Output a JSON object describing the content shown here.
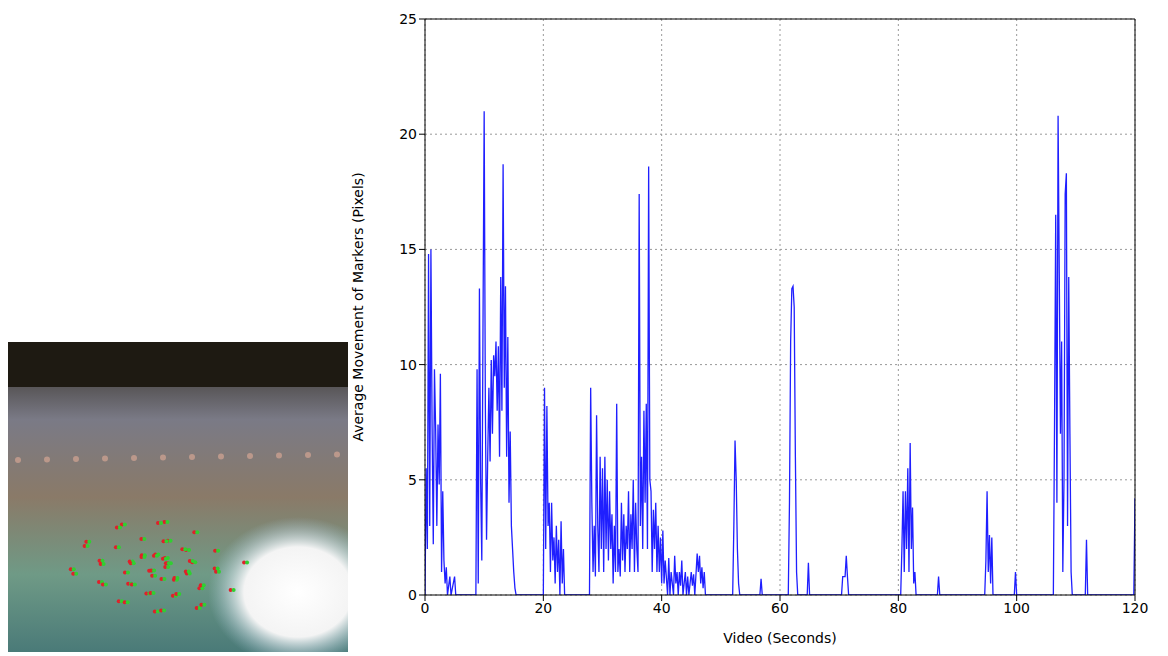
{
  "chart_data": {
    "type": "line",
    "xlabel": "Video (Seconds)",
    "ylabel": "Average Movement of Markers (Pixels)",
    "xlim": [
      0,
      120
    ],
    "xticks": [
      0,
      20,
      40,
      60,
      80,
      100,
      120
    ],
    "ylim": [
      0,
      25
    ],
    "yticks": [
      0,
      5,
      10,
      15,
      20,
      25
    ],
    "grid": true,
    "color": "#1f1fff",
    "x": [
      0,
      0.2,
      0.4,
      0.6,
      0.8,
      1.0,
      1.2,
      1.4,
      1.6,
      1.8,
      2.0,
      2.2,
      2.4,
      2.6,
      2.8,
      3.0,
      3.2,
      3.4,
      3.6,
      3.8,
      4.2,
      4.4,
      5,
      5.2,
      8.6,
      8.8,
      9.0,
      9.2,
      9.4,
      9.6,
      9.8,
      10.0,
      10.2,
      10.4,
      10.6,
      10.8,
      11.0,
      11.2,
      11.4,
      11.6,
      11.8,
      12,
      12.2,
      12.4,
      12.6,
      12.8,
      13,
      13.2,
      13.4,
      13.6,
      13.8,
      14,
      14.2,
      14.4,
      14.6,
      14.8,
      15,
      15.2,
      15.4,
      20,
      20.2,
      20.4,
      20.6,
      20.8,
      21,
      21.2,
      21.4,
      21.6,
      21.8,
      22,
      22.2,
      22.4,
      22.6,
      22.8,
      23,
      23.2,
      23.4,
      23.6,
      27.8,
      28,
      28.2,
      28.4,
      28.6,
      28.8,
      29,
      29.2,
      29.4,
      29.6,
      29.8,
      30,
      30.2,
      30.4,
      30.6,
      30.8,
      31,
      31.2,
      31.4,
      31.6,
      31.8,
      32,
      32.2,
      32.4,
      32.6,
      32.8,
      33,
      33.2,
      33.4,
      33.6,
      33.8,
      34,
      34.2,
      34.4,
      34.6,
      34.8,
      35,
      35.2,
      35.4,
      35.6,
      35.8,
      36,
      36.2,
      36.4,
      36.6,
      36.8,
      37,
      37.2,
      37.4,
      37.6,
      37.8,
      38,
      38.2,
      38.4,
      38.6,
      38.8,
      39,
      39.2,
      39.4,
      39.6,
      39.8,
      40,
      40.2,
      40.4,
      40.6,
      41,
      41.2,
      41.4,
      41.6,
      42,
      42.2,
      42.4,
      42.6,
      42.8,
      43,
      43.2,
      43.4,
      43.6,
      44,
      44.2,
      44.4,
      44.6,
      45,
      45.2,
      45.4,
      45.6,
      46,
      46.2,
      46.4,
      46.6,
      46.8,
      47,
      47.2,
      47.4,
      52,
      52.2,
      52.4,
      52.6,
      52.8,
      53,
      53.2,
      56.6,
      56.8,
      57,
      61.4,
      61.6,
      61.8,
      62,
      62.2,
      62.4,
      62.6,
      62.8,
      63,
      64.6,
      64.8,
      65,
      70.4,
      70.6,
      71,
      71.2,
      71.4,
      71.6,
      80.4,
      80.6,
      80.8,
      81,
      81.2,
      81.4,
      81.6,
      81.8,
      82,
      82.2,
      82.4,
      82.6,
      82.8,
      83,
      86.6,
      86.8,
      87,
      94.6,
      94.8,
      95,
      95.2,
      95.4,
      95.6,
      95.8,
      96,
      99.6,
      99.8,
      100,
      106.2,
      106.4,
      106.6,
      106.8,
      107,
      107.2,
      107.4,
      107.6,
      107.8,
      108,
      108.2,
      108.4,
      108.6,
      108.8,
      109,
      109.2,
      109.4,
      111.6,
      111.8,
      112,
      119.8,
      120
    ],
    "values": [
      0,
      5.5,
      2,
      14.8,
      3,
      15,
      7.3,
      2.2,
      9.8,
      7.2,
      3,
      7.4,
      4.8,
      9.6,
      1,
      4.5,
      1.5,
      0.5,
      1.2,
      0,
      0.8,
      0,
      0.8,
      0,
      0,
      9.8,
      0.5,
      13.3,
      5,
      1.5,
      11.6,
      21,
      8.2,
      2.4,
      6,
      9,
      5.8,
      10.2,
      7,
      10.4,
      9.5,
      11,
      8,
      10.8,
      6,
      13.8,
      8,
      18.7,
      9,
      13.4,
      6,
      11.2,
      4,
      7.1,
      3,
      2,
      1,
      0.3,
      0,
      0,
      9,
      2,
      8.2,
      3,
      4,
      1,
      4,
      1.5,
      2.5,
      0.5,
      3,
      1,
      2.4,
      0,
      3.2,
      0.5,
      2,
      0,
      0,
      9,
      4,
      1,
      3,
      0.8,
      7.8,
      3,
      1,
      6,
      2,
      5.5,
      1,
      6,
      2,
      5,
      1.5,
      4.5,
      2,
      3.5,
      0.5,
      3,
      1,
      8.3,
      1,
      2,
      0.8,
      4,
      1.5,
      3.5,
      1,
      3,
      2,
      4.5,
      1,
      3.5,
      2,
      5,
      1,
      4,
      2,
      1,
      17.4,
      3,
      6,
      2,
      8,
      4,
      8.3,
      2,
      18.6,
      5,
      4.5,
      1,
      3.7,
      2,
      4,
      1,
      3,
      1,
      2.5,
      0.5,
      2.8,
      0.5,
      1.5,
      0,
      1.6,
      0,
      1,
      0,
      1.7,
      0.5,
      1,
      0,
      1,
      0.4,
      1.5,
      0,
      1,
      0,
      0.8,
      0,
      1,
      0.4,
      0.9,
      0,
      1.8,
      1,
      1.7,
      0.5,
      1.2,
      0.3,
      1,
      0,
      0,
      3,
      6.7,
      5,
      2,
      0.5,
      0,
      0,
      0.7,
      0,
      0,
      4,
      11,
      13.3,
      13.4,
      12.5,
      6,
      1,
      0,
      0,
      1.4,
      0,
      0,
      0.8,
      0.8,
      1.7,
      0.8,
      0,
      0,
      2,
      4.5,
      1,
      4.5,
      2,
      5.5,
      1,
      6.6,
      2,
      3.8,
      0.5,
      1,
      0,
      0,
      0.8,
      0,
      0,
      1.5,
      4.5,
      1,
      2.6,
      0.5,
      2.5,
      0,
      0,
      1,
      0,
      0,
      7.4,
      16.5,
      4,
      20.8,
      14,
      7,
      11,
      1,
      5,
      17.4,
      18.3,
      3,
      13.8,
      7,
      1,
      0,
      0,
      2.4,
      0,
      0,
      4.2
    ]
  }
}
